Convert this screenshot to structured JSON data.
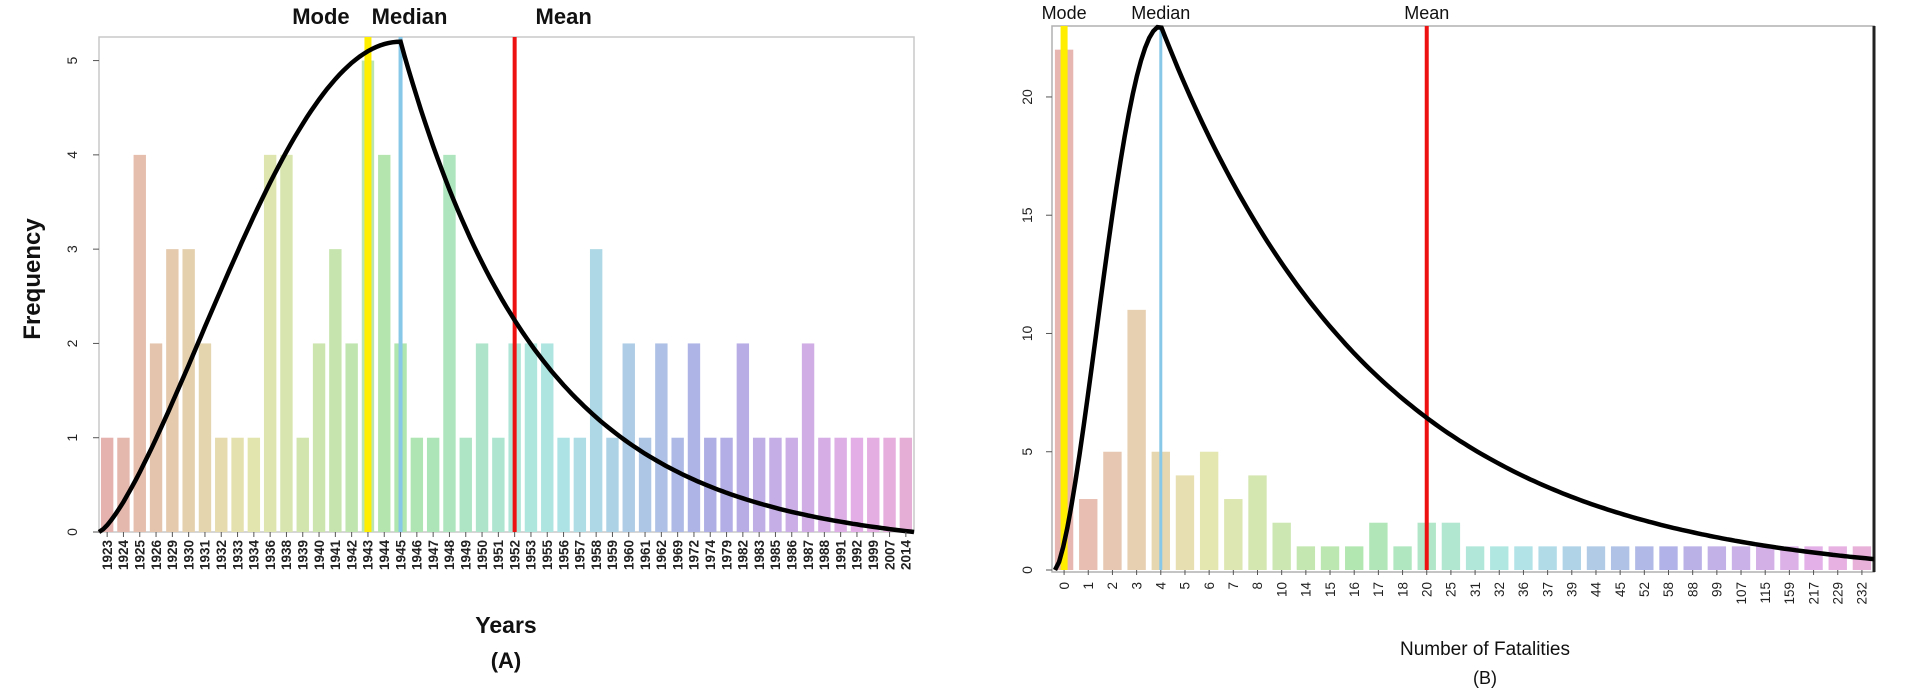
{
  "chart_data": [
    {
      "type": "bar",
      "panel_label": "(A)",
      "xlabel": "Years",
      "ylabel": "Frequency",
      "ylim": [
        0,
        5.25
      ],
      "yticks": [
        "0",
        "1",
        "2",
        "3",
        "4",
        "5"
      ],
      "categories": [
        "1923",
        "1924",
        "1925",
        "1926",
        "1929",
        "1930",
        "1931",
        "1932",
        "1933",
        "1934",
        "1936",
        "1938",
        "1939",
        "1940",
        "1941",
        "1942",
        "1943",
        "1944",
        "1945",
        "1946",
        "1947",
        "1948",
        "1949",
        "1950",
        "1951",
        "1952",
        "1953",
        "1955",
        "1956",
        "1957",
        "1958",
        "1959",
        "1960",
        "1961",
        "1962",
        "1969",
        "1972",
        "1974",
        "1979",
        "1982",
        "1983",
        "1985",
        "1986",
        "1987",
        "1988",
        "1991",
        "1992",
        "1999",
        "2007",
        "2014"
      ],
      "values": [
        1,
        1,
        4,
        2,
        3,
        3,
        2,
        1,
        1,
        1,
        4,
        4,
        1,
        2,
        3,
        2,
        5,
        4,
        2,
        1,
        1,
        4,
        1,
        2,
        1,
        2,
        2,
        2,
        1,
        1,
        3,
        1,
        2,
        1,
        2,
        1,
        2,
        1,
        1,
        2,
        1,
        1,
        1,
        2,
        1,
        1,
        1,
        1,
        1,
        1
      ],
      "curve_peak": 5.2,
      "markers": [
        {
          "label": "Mode",
          "category": "1943",
          "color": "#ffee00"
        },
        {
          "label": "Median",
          "category": "1945",
          "color": "#87c8e8"
        },
        {
          "label": "Mean",
          "category": "1952",
          "color": "#ee1111"
        }
      ]
    },
    {
      "type": "bar",
      "panel_label": "(B)",
      "xlabel": "Number of Fatalities",
      "ylabel": "",
      "ylim": [
        0,
        23
      ],
      "yticks": [
        "0",
        "5",
        "10",
        "15",
        "20"
      ],
      "categories": [
        "0",
        "1",
        "2",
        "3",
        "4",
        "5",
        "6",
        "7",
        "8",
        "10",
        "14",
        "15",
        "16",
        "17",
        "18",
        "20",
        "25",
        "31",
        "32",
        "36",
        "37",
        "39",
        "44",
        "45",
        "52",
        "58",
        "88",
        "99",
        "107",
        "115",
        "159",
        "217",
        "229",
        "232"
      ],
      "values": [
        22,
        3,
        5,
        11,
        5,
        4,
        5,
        3,
        4,
        2,
        1,
        1,
        1,
        2,
        1,
        2,
        2,
        1,
        1,
        1,
        1,
        1,
        1,
        1,
        1,
        1,
        1,
        1,
        1,
        1,
        1,
        1,
        1,
        1
      ],
      "curve_peak": 23,
      "markers": [
        {
          "label": "Mode",
          "category": "0",
          "color": "#ffee00"
        },
        {
          "label": "Median",
          "category": "4",
          "color": "#87c8e8"
        },
        {
          "label": "Mean",
          "category": "20",
          "color": "#ee1111"
        }
      ]
    }
  ]
}
